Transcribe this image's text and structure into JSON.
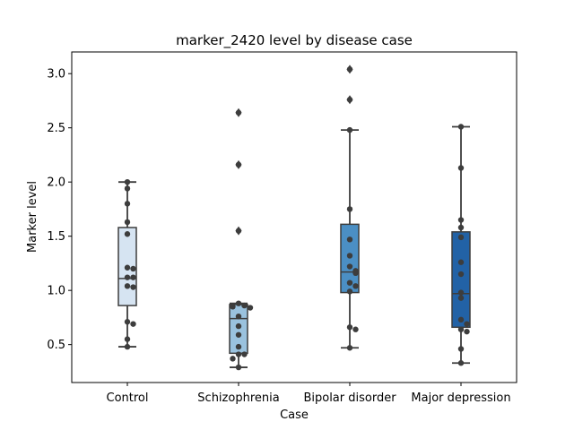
{
  "chart_data": {
    "type": "box",
    "title": "marker_2420 level by disease case",
    "xlabel": "Case",
    "ylabel": "Marker level",
    "ylim": [
      0.15,
      3.2
    ],
    "yticks": [
      0.5,
      1.0,
      1.5,
      2.0,
      2.5,
      3.0
    ],
    "ytick_labels": [
      "0.5",
      "1.0",
      "1.5",
      "2.0",
      "2.5",
      "3.0"
    ],
    "grid": false,
    "categories": [
      "Control",
      "Schizophrenia",
      "Bipolar disorder",
      "Major depression"
    ],
    "colors": [
      "#d6e4f2",
      "#9ac2de",
      "#4b8fc4",
      "#2262a6"
    ],
    "boxes": [
      {
        "q1": 0.86,
        "median": 1.11,
        "q3": 1.58,
        "whisker_low": 0.48,
        "whisker_high": 2.0,
        "outliers": []
      },
      {
        "q1": 0.42,
        "median": 0.74,
        "q3": 0.87,
        "whisker_low": 0.29,
        "whisker_high": 0.88,
        "outliers": [
          1.55,
          2.16,
          2.64
        ]
      },
      {
        "q1": 0.98,
        "median": 1.17,
        "q3": 1.61,
        "whisker_low": 0.47,
        "whisker_high": 2.48,
        "outliers": [
          2.76,
          3.04
        ]
      },
      {
        "q1": 0.66,
        "median": 0.97,
        "q3": 1.54,
        "whisker_low": 0.33,
        "whisker_high": 2.51,
        "outliers": []
      }
    ],
    "points": [
      [
        2.0,
        1.94,
        1.8,
        1.63,
        1.52,
        1.21,
        1.2,
        1.12,
        1.12,
        1.04,
        1.03,
        0.71,
        0.69,
        0.55,
        0.48
      ],
      [
        2.64,
        2.16,
        1.55,
        0.88,
        0.86,
        0.85,
        0.84,
        0.76,
        0.67,
        0.59,
        0.48,
        0.41,
        0.41,
        0.37,
        0.29
      ],
      [
        3.04,
        2.76,
        2.48,
        1.75,
        1.47,
        1.32,
        1.22,
        1.18,
        1.16,
        1.07,
        1.04,
        0.99,
        0.66,
        0.64,
        0.47
      ],
      [
        2.51,
        2.13,
        1.65,
        1.58,
        1.49,
        1.26,
        1.15,
        0.98,
        0.93,
        0.73,
        0.69,
        0.64,
        0.62,
        0.46,
        0.33
      ]
    ]
  }
}
